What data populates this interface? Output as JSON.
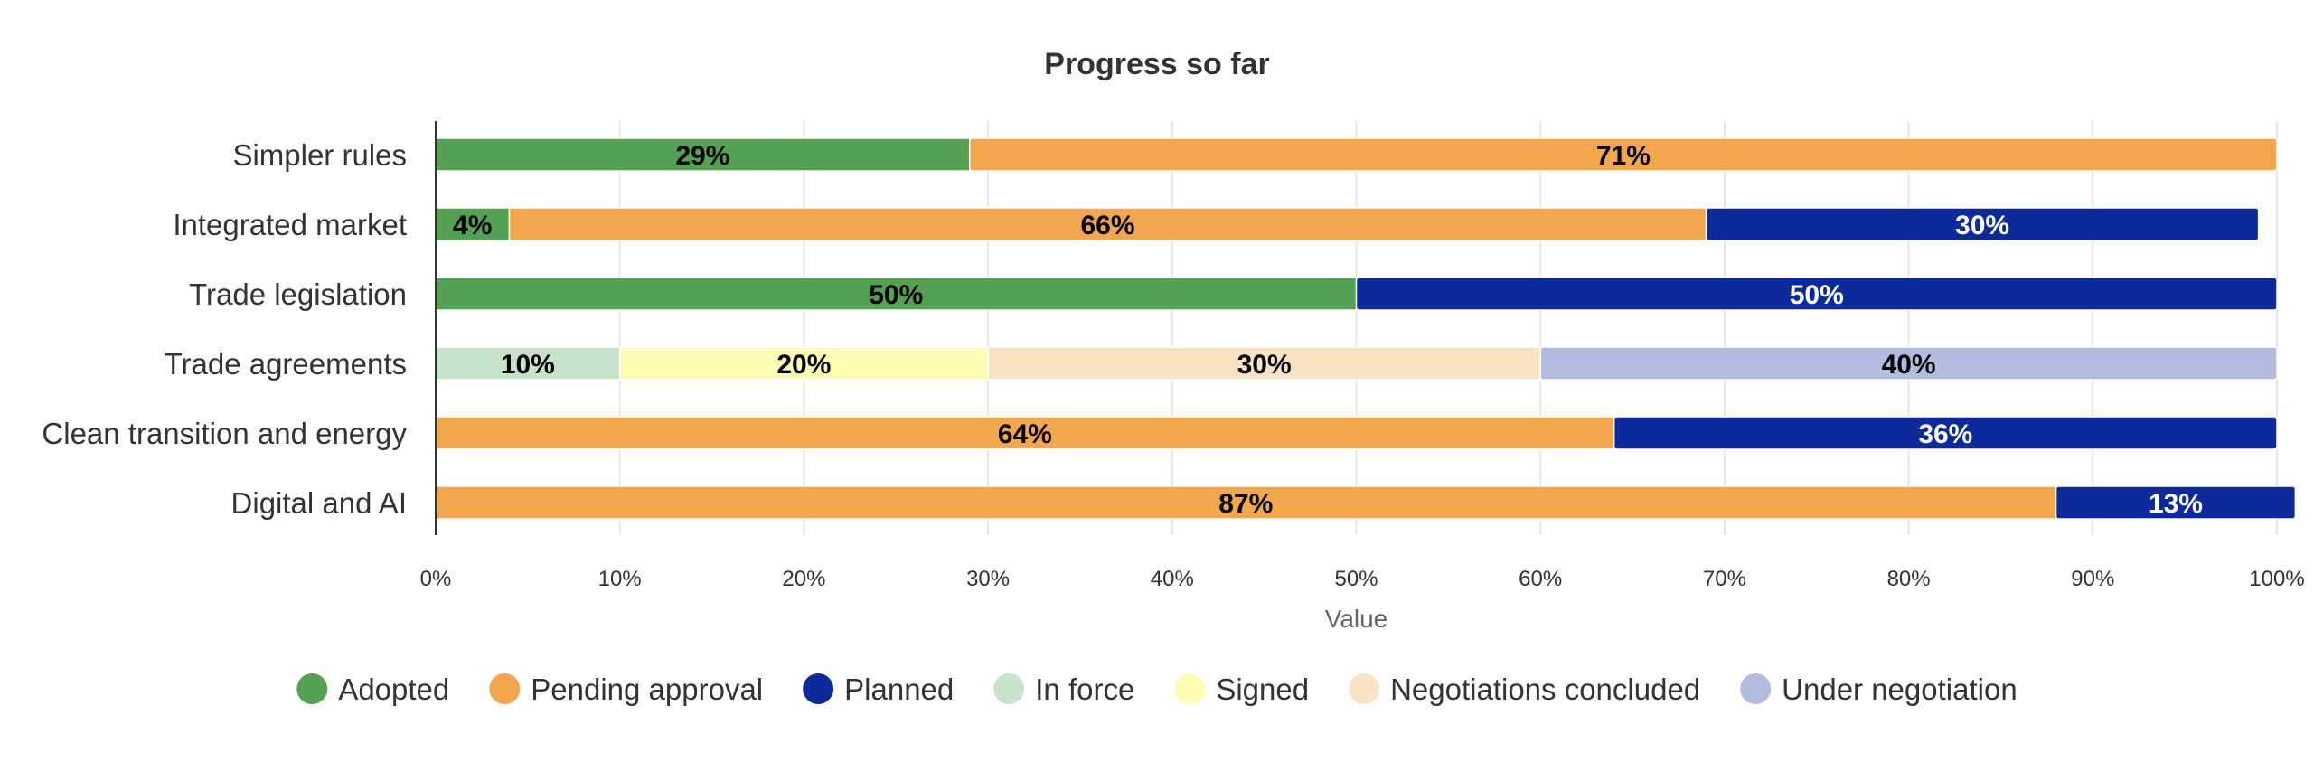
{
  "chart_data": {
    "type": "bar",
    "orientation": "horizontal",
    "stacked": true,
    "title": "Progress so far",
    "xlabel": "Value",
    "ylabel": "",
    "xlim": [
      0,
      100
    ],
    "x_ticks": [
      "0%",
      "10%",
      "20%",
      "30%",
      "40%",
      "50%",
      "60%",
      "70%",
      "80%",
      "90%",
      "100%"
    ],
    "grid": true,
    "legend_position": "bottom",
    "categories": [
      "Simpler rules",
      "Integrated market",
      "Trade legislation",
      "Trade agreements",
      "Clean transition and energy",
      "Digital and AI"
    ],
    "series": [
      {
        "name": "Adopted",
        "color": "#55a153",
        "label_color": "#000000",
        "values": [
          29,
          4,
          50,
          0,
          0,
          0
        ]
      },
      {
        "name": "Pending approval",
        "color": "#f2a74f",
        "label_color": "#000000",
        "values": [
          71,
          65,
          0,
          0,
          64,
          88
        ]
      },
      {
        "name": "Planned",
        "color": "#0c2a9a",
        "label_color": "#ffffff",
        "values": [
          0,
          30,
          50,
          0,
          36,
          13
        ]
      },
      {
        "name": "In force",
        "color": "#c7e3cc",
        "label_color": "#000000",
        "values": [
          0,
          0,
          0,
          10,
          0,
          0
        ]
      },
      {
        "name": "Signed",
        "color": "#fdfdb4",
        "label_color": "#000000",
        "values": [
          0,
          0,
          0,
          20,
          0,
          0
        ]
      },
      {
        "name": "Negotiations concluded",
        "color": "#fae3c5",
        "label_color": "#000000",
        "values": [
          0,
          0,
          0,
          30,
          0,
          0
        ]
      },
      {
        "name": "Under negotiation",
        "color": "#b3bcdf",
        "label_color": "#000000",
        "values": [
          0,
          0,
          0,
          40,
          0,
          0
        ]
      }
    ],
    "value_suffix": "%"
  }
}
